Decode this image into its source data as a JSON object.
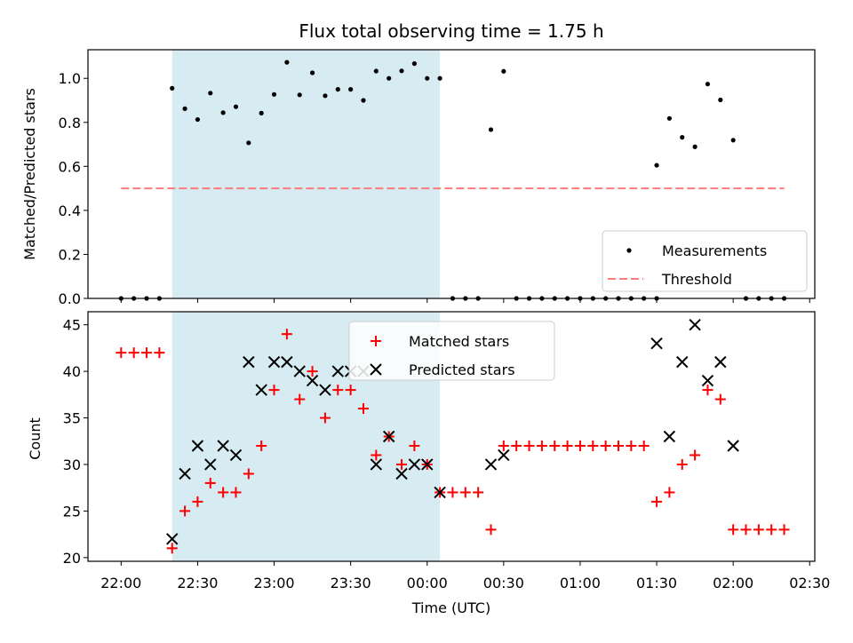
{
  "chart_data": [
    {
      "type": "scatter",
      "title": "Flux total observing time = 1.75 h",
      "xlabel": "",
      "ylabel": "Matched/Predicted stars",
      "ylim": [
        0.0,
        1.13
      ],
      "y_ticks": [
        "0.0",
        "0.2",
        "0.4",
        "0.6",
        "0.8",
        "1.0"
      ],
      "highlight_span_minutes": [
        20,
        125
      ],
      "x_unit": "minutes after 22:00 UTC",
      "legend_position": "lower-right",
      "series": [
        {
          "name": "Measurements",
          "marker": "dot",
          "color": "#000000",
          "points": [
            [
              0,
              0
            ],
            [
              5,
              0
            ],
            [
              10,
              0
            ],
            [
              15,
              0
            ],
            [
              20,
              0.955
            ],
            [
              25,
              0.862
            ],
            [
              30,
              0.813
            ],
            [
              35,
              0.933
            ],
            [
              40,
              0.844
            ],
            [
              45,
              0.871
            ],
            [
              50,
              0.707
            ],
            [
              55,
              0.842
            ],
            [
              60,
              0.927
            ],
            [
              65,
              1.073
            ],
            [
              70,
              0.925
            ],
            [
              75,
              1.025
            ],
            [
              80,
              0.921
            ],
            [
              85,
              0.95
            ],
            [
              90,
              0.95
            ],
            [
              95,
              0.9
            ],
            [
              100,
              1.033
            ],
            [
              105,
              1.0
            ],
            [
              110,
              1.034
            ],
            [
              115,
              1.067
            ],
            [
              120,
              1.0
            ],
            [
              125,
              1.0
            ],
            [
              130,
              0
            ],
            [
              135,
              0
            ],
            [
              140,
              0
            ],
            [
              145,
              0.767
            ],
            [
              150,
              1.032
            ],
            [
              155,
              0
            ],
            [
              160,
              0
            ],
            [
              165,
              0
            ],
            [
              170,
              0
            ],
            [
              175,
              0
            ],
            [
              180,
              0
            ],
            [
              185,
              0
            ],
            [
              190,
              0
            ],
            [
              195,
              0
            ],
            [
              200,
              0
            ],
            [
              205,
              0
            ],
            [
              210,
              0
            ],
            [
              210,
              0.605
            ],
            [
              215,
              0.818
            ],
            [
              220,
              0.732
            ],
            [
              225,
              0.689
            ],
            [
              230,
              0.974
            ],
            [
              235,
              0.902
            ],
            [
              240,
              0.719
            ],
            [
              245,
              0
            ],
            [
              250,
              0
            ],
            [
              255,
              0
            ],
            [
              260,
              0
            ]
          ]
        },
        {
          "name": "Threshold",
          "style": "dashed",
          "color": "#ff7b7b",
          "points": [
            [
              0,
              0.5
            ],
            [
              260,
              0.5
            ]
          ]
        }
      ]
    },
    {
      "type": "scatter",
      "xlabel": "Time (UTC)",
      "ylabel": "Count",
      "ylim": [
        19.6,
        46.4
      ],
      "y_ticks": [
        "20",
        "25",
        "30",
        "35",
        "40",
        "45"
      ],
      "x_ticks": [
        "22:00",
        "22:30",
        "23:00",
        "23:30",
        "00:00",
        "00:30",
        "01:00",
        "01:30",
        "02:00",
        "02:30"
      ],
      "xlim_minutes": [
        -13,
        272
      ],
      "highlight_span_minutes": [
        20,
        125
      ],
      "x_unit": "minutes after 22:00 UTC",
      "legend_position": "upper-center",
      "series": [
        {
          "name": "Matched stars",
          "marker": "plus",
          "color": "#ff0000",
          "points": [
            [
              0,
              42
            ],
            [
              5,
              42
            ],
            [
              10,
              42
            ],
            [
              15,
              42
            ],
            [
              20,
              21
            ],
            [
              25,
              25
            ],
            [
              30,
              26
            ],
            [
              35,
              28
            ],
            [
              40,
              27
            ],
            [
              45,
              27
            ],
            [
              50,
              29
            ],
            [
              55,
              32
            ],
            [
              60,
              38
            ],
            [
              65,
              44
            ],
            [
              70,
              37
            ],
            [
              75,
              40
            ],
            [
              80,
              35
            ],
            [
              85,
              38
            ],
            [
              90,
              38
            ],
            [
              95,
              36
            ],
            [
              100,
              31
            ],
            [
              105,
              33
            ],
            [
              110,
              30
            ],
            [
              115,
              32
            ],
            [
              120,
              30
            ],
            [
              125,
              27
            ],
            [
              130,
              27
            ],
            [
              135,
              27
            ],
            [
              140,
              27
            ],
            [
              145,
              23
            ],
            [
              150,
              32
            ],
            [
              155,
              32
            ],
            [
              160,
              32
            ],
            [
              165,
              32
            ],
            [
              170,
              32
            ],
            [
              175,
              32
            ],
            [
              180,
              32
            ],
            [
              185,
              32
            ],
            [
              190,
              32
            ],
            [
              195,
              32
            ],
            [
              200,
              32
            ],
            [
              205,
              32
            ],
            [
              210,
              26
            ],
            [
              215,
              27
            ],
            [
              220,
              30
            ],
            [
              225,
              31
            ],
            [
              230,
              38
            ],
            [
              235,
              37
            ],
            [
              240,
              23
            ],
            [
              245,
              23
            ],
            [
              250,
              23
            ],
            [
              255,
              23
            ],
            [
              260,
              23
            ]
          ]
        },
        {
          "name": "Predicted stars",
          "marker": "x",
          "color": "#000000",
          "points": [
            [
              20,
              22
            ],
            [
              25,
              29
            ],
            [
              30,
              32
            ],
            [
              35,
              30
            ],
            [
              40,
              32
            ],
            [
              45,
              31
            ],
            [
              50,
              41
            ],
            [
              55,
              38
            ],
            [
              60,
              41
            ],
            [
              65,
              41
            ],
            [
              70,
              40
            ],
            [
              75,
              39
            ],
            [
              80,
              38
            ],
            [
              85,
              40
            ],
            [
              90,
              40
            ],
            [
              95,
              40
            ],
            [
              100,
              30
            ],
            [
              105,
              33
            ],
            [
              110,
              29
            ],
            [
              115,
              30
            ],
            [
              120,
              30
            ],
            [
              125,
              27
            ],
            [
              145,
              30
            ],
            [
              150,
              31
            ],
            [
              210,
              43
            ],
            [
              215,
              33
            ],
            [
              220,
              41
            ],
            [
              225,
              45
            ],
            [
              230,
              39
            ],
            [
              235,
              41
            ],
            [
              240,
              32
            ]
          ]
        }
      ]
    }
  ]
}
